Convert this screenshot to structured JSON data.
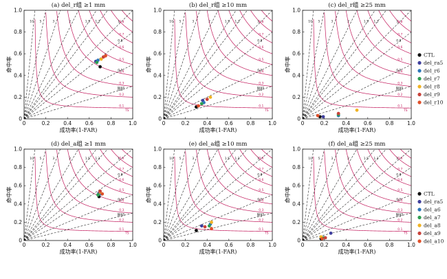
{
  "chart_data": {
    "type": "scatter",
    "xlabel": "成功率(1-FAR)",
    "ylabel": "命中率",
    "xlim": [
      0,
      1
    ],
    "ylim": [
      0,
      1
    ],
    "xticks": [
      "0",
      "0.2",
      "0.4",
      "0.6",
      "0.8",
      "1.0"
    ],
    "yticks": [
      "0",
      "0.2",
      "0.4",
      "0.6",
      "0.8",
      "1.0"
    ],
    "bias_lines": [
      0.3,
      0.5,
      0.8,
      1,
      1.3,
      1.5,
      2,
      3,
      5,
      10
    ],
    "bias_labels": [
      "0.3",
      "0.5",
      "0.8",
      "1",
      "1.3",
      "1.5",
      "2",
      "3",
      "5",
      "10"
    ],
    "bias_tag": "BIAS",
    "csi_lines": [
      0.1,
      0.2,
      0.3,
      0.4,
      0.5,
      0.6,
      0.7,
      0.8,
      0.9
    ],
    "csi_labels": [
      "0.1",
      "0.2",
      "0.3",
      "0.4",
      "0.5",
      "0.6",
      "0.7",
      "0.8",
      "0.9"
    ],
    "csi_tag": "TS",
    "panels": [
      {
        "title": "(a) del_r组  ≥1 mm",
        "points": [
          [
            0.7,
            0.48
          ],
          [
            0.66,
            0.53
          ],
          [
            0.68,
            0.54
          ],
          [
            0.67,
            0.52
          ],
          [
            0.71,
            0.55
          ],
          [
            0.73,
            0.57
          ],
          [
            0.75,
            0.58
          ]
        ]
      },
      {
        "title": "(b) del_r组  ≥10 mm",
        "points": [
          [
            0.3,
            0.11
          ],
          [
            0.36,
            0.17
          ],
          [
            0.37,
            0.15
          ],
          [
            0.35,
            0.14
          ],
          [
            0.43,
            0.2
          ],
          [
            0.4,
            0.18
          ],
          [
            0.32,
            0.12
          ]
        ]
      },
      {
        "title": "(c) del_r组  ≥25 mm",
        "points": [
          [
            0.16,
            0.02
          ],
          [
            0.19,
            0.02
          ],
          [
            0.33,
            0.03
          ],
          [
            0.33,
            0.04
          ],
          [
            0.5,
            0.08
          ],
          [
            0.33,
            0.05
          ],
          [
            0.14,
            0.03
          ]
        ]
      },
      {
        "title": "(d) del_a组  ≥1 mm",
        "points": [
          [
            0.69,
            0.48
          ],
          [
            0.69,
            0.52
          ],
          [
            0.71,
            0.51
          ],
          [
            0.68,
            0.5
          ],
          [
            0.7,
            0.53
          ],
          [
            0.7,
            0.54
          ],
          [
            0.72,
            0.51
          ]
        ]
      },
      {
        "title": "(e) del_a组  ≥10 mm",
        "points": [
          [
            0.3,
            0.11
          ],
          [
            0.35,
            0.16
          ],
          [
            0.43,
            0.18
          ],
          [
            0.42,
            0.16
          ],
          [
            0.44,
            0.2
          ],
          [
            0.38,
            0.15
          ],
          [
            0.44,
            0.13
          ]
        ]
      },
      {
        "title": "(f) del_a组  ≥25 mm",
        "points": [
          [
            0.17,
            0.02
          ],
          [
            0.26,
            0.08
          ],
          [
            0.2,
            0.03
          ],
          [
            0.19,
            0.03
          ],
          [
            0.17,
            0.04
          ],
          [
            0.21,
            0.03
          ],
          [
            0.18,
            0.02
          ]
        ]
      }
    ],
    "legends": [
      {
        "entries": [
          "CTL",
          "del_ra5",
          "del_r6",
          "del_r7",
          "del_r8",
          "del_r9",
          "del_r10"
        ]
      },
      {
        "entries": [
          "CTL",
          "del_ra5",
          "del_a6",
          "del_a7",
          "del_a8",
          "del_a9",
          "del_a10"
        ]
      }
    ],
    "colors": {
      "series": [
        "#111111",
        "#3f3f9e",
        "#2b76b9",
        "#2e9e52",
        "#f0b323",
        "#c9433b",
        "#e0502a"
      ],
      "csi": "#c2185b",
      "bias": "#222222"
    }
  }
}
